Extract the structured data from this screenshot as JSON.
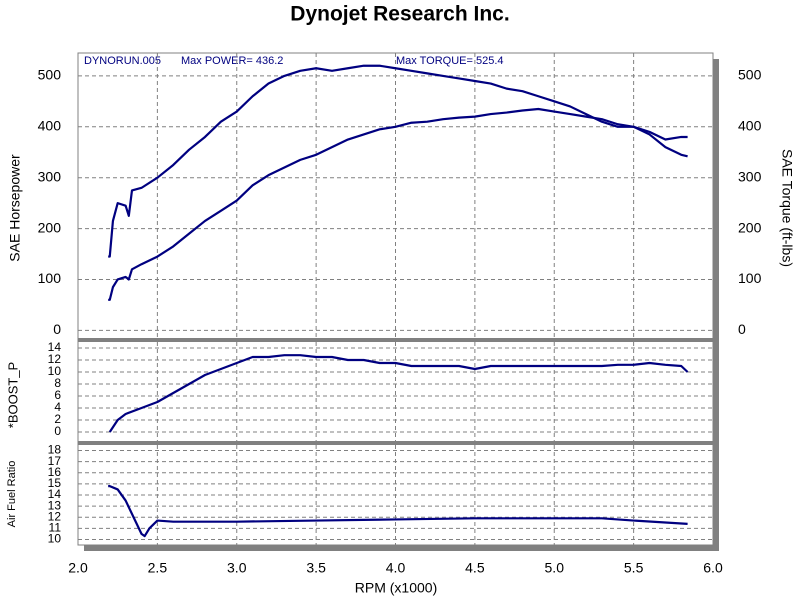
{
  "chart_data": [
    {
      "type": "line",
      "title": "Dynojet Research Inc.",
      "annotations": [
        "DYNORUN.005",
        "Max POWER= 436.2",
        "Max TORQUE= 525.4"
      ],
      "ylabel": "SAE Horsepower",
      "y2label": "SAE Torque (ft-lbs)",
      "x": [
        2.19,
        2.2,
        2.22,
        2.25,
        2.3,
        2.32,
        2.34,
        2.4,
        2.5,
        2.6,
        2.7,
        2.8,
        2.9,
        3.0,
        3.1,
        3.2,
        3.3,
        3.4,
        3.5,
        3.6,
        3.7,
        3.8,
        3.9,
        4.0,
        4.1,
        4.2,
        4.3,
        4.4,
        4.5,
        4.6,
        4.7,
        4.8,
        4.9,
        5.0,
        5.1,
        5.2,
        5.3,
        5.4,
        5.5,
        5.6,
        5.7,
        5.8,
        5.84
      ],
      "series": [
        {
          "name": "SAE Horsepower",
          "color": "#000080",
          "values": [
            60,
            60,
            85,
            100,
            105,
            100,
            120,
            130,
            145,
            165,
            190,
            215,
            235,
            255,
            285,
            305,
            320,
            335,
            345,
            360,
            375,
            385,
            395,
            400,
            408,
            410,
            415,
            418,
            420,
            425,
            428,
            432,
            435,
            430,
            425,
            420,
            415,
            405,
            400,
            390,
            375,
            380,
            380
          ]
        },
        {
          "name": "SAE Torque (ft-lbs)",
          "color": "#000080",
          "axis": "y2",
          "values": [
            145,
            145,
            215,
            250,
            245,
            225,
            275,
            280,
            300,
            325,
            355,
            380,
            410,
            430,
            460,
            485,
            500,
            510,
            515,
            510,
            515,
            520,
            520,
            515,
            510,
            505,
            500,
            495,
            490,
            485,
            475,
            470,
            460,
            450,
            440,
            425,
            410,
            400,
            400,
            385,
            360,
            345,
            342
          ]
        }
      ],
      "ylim": [
        -15,
        545
      ],
      "yticks": [
        0,
        100,
        200,
        300,
        400,
        500
      ],
      "y2lim": [
        -15,
        545
      ],
      "y2ticks": [
        0,
        100,
        200,
        300,
        400,
        500
      ],
      "grid": true
    },
    {
      "type": "line",
      "ylabel": "*BOOST_P",
      "x": [
        2.2,
        2.25,
        2.3,
        2.4,
        2.5,
        2.6,
        2.7,
        2.8,
        2.9,
        3.0,
        3.1,
        3.2,
        3.3,
        3.4,
        3.5,
        3.6,
        3.7,
        3.8,
        3.9,
        4.0,
        4.1,
        4.2,
        4.3,
        4.4,
        4.5,
        4.6,
        4.7,
        4.8,
        4.9,
        5.0,
        5.1,
        5.2,
        5.3,
        5.4,
        5.5,
        5.6,
        5.7,
        5.8,
        5.84
      ],
      "series": [
        {
          "name": "*BOOST_P",
          "color": "#000080",
          "values": [
            0,
            2,
            3,
            4,
            5,
            6.5,
            8,
            9.5,
            10.5,
            11.5,
            12.5,
            12.5,
            12.8,
            12.8,
            12.5,
            12.5,
            12,
            12,
            11.5,
            11.5,
            11,
            11,
            11,
            11,
            10.5,
            11,
            11,
            11,
            11,
            11,
            11,
            11,
            11,
            11.2,
            11.2,
            11.5,
            11.2,
            11,
            10
          ]
        }
      ],
      "ylim": [
        -1.5,
        15
      ],
      "yticks": [
        0,
        2,
        4,
        6,
        8,
        10,
        12,
        14
      ],
      "grid": true
    },
    {
      "type": "line",
      "ylabel": "Air Fuel Ratio",
      "xlabel": "RPM (x1000)",
      "x": [
        2.19,
        2.2,
        2.25,
        2.3,
        2.35,
        2.4,
        2.42,
        2.45,
        2.5,
        2.6,
        3.0,
        3.5,
        4.0,
        4.5,
        5.0,
        5.3,
        5.5,
        5.84
      ],
      "series": [
        {
          "name": "Air Fuel Ratio",
          "color": "#000080",
          "values": [
            14.8,
            14.8,
            14.5,
            13.5,
            12,
            10.5,
            10.3,
            11,
            11.7,
            11.6,
            11.6,
            11.7,
            11.8,
            11.9,
            11.9,
            11.9,
            11.7,
            11.4
          ]
        }
      ],
      "ylim": [
        9.5,
        18.5
      ],
      "yticks": [
        10,
        11,
        12,
        13,
        14,
        15,
        16,
        17,
        18
      ],
      "xlim": [
        2.0,
        6.0
      ],
      "xticks": [
        {
          "value": 2.0,
          "label": "2.0"
        },
        {
          "value": 2.5,
          "label": "2.5"
        },
        {
          "value": 3.0,
          "label": "3.0"
        },
        {
          "value": 3.5,
          "label": "3.5"
        },
        {
          "value": 4.0,
          "label": "4.0"
        },
        {
          "value": 4.5,
          "label": "4.5"
        },
        {
          "value": 5.0,
          "label": "5.0"
        },
        {
          "value": 5.5,
          "label": "5.5"
        },
        {
          "value": 6.0,
          "label": "6.0"
        }
      ],
      "grid": true
    }
  ]
}
